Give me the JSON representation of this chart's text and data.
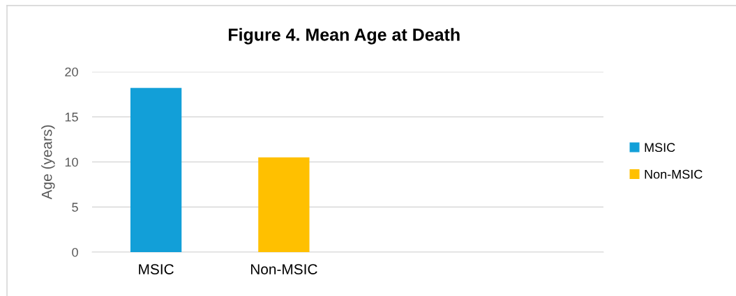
{
  "chart_data": {
    "type": "bar",
    "title": "Figure 4. Mean Age at Death",
    "ylabel": "Age (years)",
    "categories": [
      "MSIC",
      "Non-MSIC",
      null,
      null
    ],
    "series": [
      {
        "name": "MSIC",
        "color": "#129fd8",
        "values": [
          18.2,
          null,
          null,
          null
        ]
      },
      {
        "name": "Non-MSIC",
        "color": "#ffc000",
        "values": [
          null,
          10.5,
          null,
          null
        ]
      }
    ],
    "stacked": true,
    "ylim": [
      0,
      20
    ],
    "yticks": [
      0,
      5,
      10,
      15,
      20
    ],
    "grid": "y",
    "legend": "right"
  }
}
